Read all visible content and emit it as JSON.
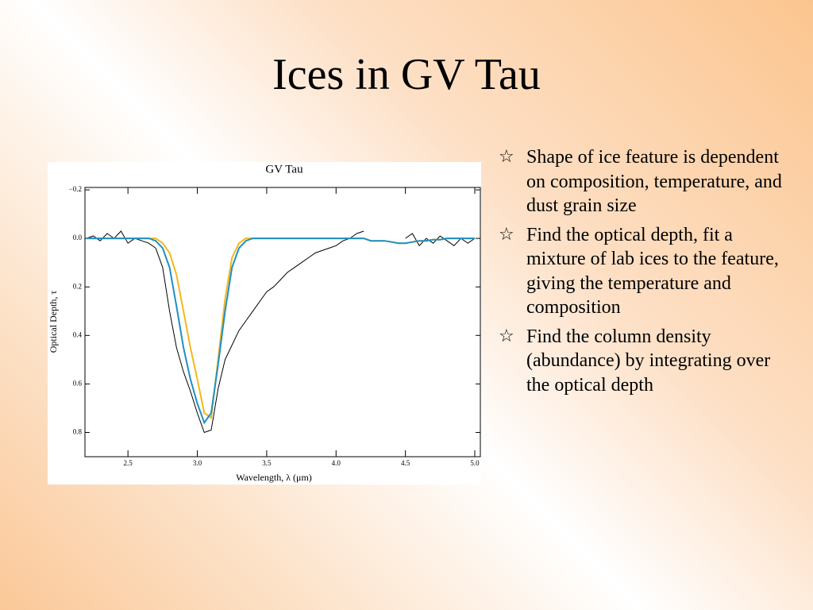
{
  "slide": {
    "title": "Ices in GV Tau",
    "bullets": [
      "Shape of ice feature is dependent on composition, temperature, and dust grain size",
      "Find the optical depth, fit a mixture of lab ices to the feature, giving the temperature and composition",
      "Find the column density (abundance) by integrating over the optical depth"
    ]
  },
  "chart_data": {
    "type": "line",
    "title": "GV Tau",
    "x_label": "Wavelength, λ (μm)",
    "y_label": "Optical Depth, τ",
    "x": [
      2.2,
      2.25,
      2.3,
      2.35,
      2.4,
      2.45,
      2.5,
      2.55,
      2.6,
      2.65,
      2.7,
      2.75,
      2.8,
      2.85,
      2.9,
      2.95,
      3.0,
      3.05,
      3.1,
      3.15,
      3.2,
      3.25,
      3.3,
      3.35,
      3.4,
      3.45,
      3.5,
      3.55,
      3.6,
      3.65,
      3.7,
      3.75,
      3.8,
      3.85,
      3.9,
      3.95,
      4.0,
      4.05,
      4.1,
      4.15,
      4.2,
      4.25,
      4.3,
      4.35,
      4.4,
      4.45,
      4.5,
      4.55,
      4.6,
      4.65,
      4.7,
      4.75,
      4.8,
      4.85,
      4.9,
      4.95,
      5.0
    ],
    "series": [
      {
        "color": "#000000",
        "values": [
          0.0,
          -0.01,
          0.01,
          -0.02,
          0.0,
          -0.03,
          0.02,
          0.0,
          0.01,
          0.02,
          0.04,
          0.12,
          0.3,
          0.45,
          0.55,
          0.63,
          0.72,
          0.8,
          0.79,
          0.62,
          0.5,
          0.44,
          0.38,
          0.34,
          0.3,
          0.26,
          0.22,
          0.2,
          0.17,
          0.14,
          0.12,
          0.1,
          0.08,
          0.06,
          0.05,
          0.04,
          0.03,
          0.01,
          0.0,
          -0.02,
          -0.03,
          null,
          null,
          null,
          null,
          null,
          0.0,
          -0.02,
          0.03,
          0.0,
          0.02,
          -0.01,
          0.01,
          0.03,
          0.0,
          0.02,
          0.0
        ]
      },
      {
        "color": "#f2b81c",
        "values": [
          0,
          0,
          0,
          0,
          0,
          0,
          0,
          0,
          0,
          0,
          0.0,
          0.02,
          0.06,
          0.15,
          0.3,
          0.45,
          0.58,
          0.72,
          0.74,
          0.5,
          0.25,
          0.08,
          0.02,
          0.0,
          0.0,
          0,
          0,
          0,
          0,
          0,
          0,
          0,
          0,
          0,
          0,
          0,
          0,
          0,
          0,
          0,
          0,
          0.01,
          0.01,
          0.01,
          0.015,
          0.02,
          0.02,
          0.015,
          0.01,
          0.01,
          0.005,
          0.005,
          0.0,
          0,
          0,
          0,
          0
        ]
      },
      {
        "color": "#1f8fc4",
        "values": [
          0,
          0,
          0,
          0,
          0,
          0,
          0,
          0,
          0,
          0.0,
          0.01,
          0.04,
          0.12,
          0.28,
          0.45,
          0.58,
          0.68,
          0.76,
          0.72,
          0.52,
          0.3,
          0.12,
          0.04,
          0.01,
          0.0,
          0,
          0,
          0,
          0,
          0,
          0,
          0,
          0,
          0,
          0,
          0,
          0,
          0,
          0,
          0,
          0,
          0.01,
          0.01,
          0.01,
          0.015,
          0.02,
          0.02,
          0.015,
          0.01,
          0.01,
          0.005,
          0.005,
          0.0,
          0,
          0,
          0,
          0
        ]
      }
    ],
    "xlim": [
      2.19,
      5.04
    ],
    "xticks": [
      2.5,
      {
        "value": 3,
        "label": "3.0"
      },
      3.5,
      {
        "value": 4,
        "label": "4.0"
      },
      4.5,
      {
        "value": 5,
        "label": "5.0"
      }
    ],
    "ylim": [
      -0.21,
      0.9
    ],
    "y_inverted": true,
    "yticks": [
      {
        "value": -0.2,
        "label": "−0.2"
      },
      {
        "value": 0,
        "label": "0.0"
      },
      0.2,
      0.4,
      0.6,
      0.8
    ]
  }
}
